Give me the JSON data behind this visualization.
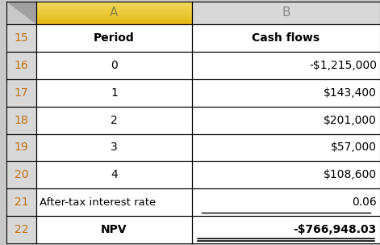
{
  "col_a_header_bg_top": "#f5d060",
  "col_a_header_bg_bot": "#e8b820",
  "col_b_header_bg": "#d8d8d8",
  "corner_bg": "#c8c8c8",
  "row_num_bg": "#d8d8d8",
  "row_num_text_color": "#c07010",
  "data_bg": "#ffffff",
  "border_color": "#000000",
  "npv_text_color": "#000000",
  "npv_underline_color": "#000000",
  "col_a_header_text": "A",
  "col_b_header_text": "B",
  "col_a_header_text_color": "#888844",
  "col_b_header_text_color": "#888888",
  "row_numbers": [
    "15",
    "16",
    "17",
    "18",
    "19",
    "20",
    "21",
    "22"
  ],
  "col_a": [
    "Period",
    "0",
    "1",
    "2",
    "3",
    "4",
    "After-tax interest rate",
    "NPV"
  ],
  "col_b": [
    "Cash flows",
    "-$1,215,000",
    "$143,400",
    "$201,000",
    "$57,000",
    "$108,600",
    "0.06",
    "-$766,948.03"
  ],
  "col_a_bold": [
    true,
    false,
    false,
    false,
    false,
    false,
    false,
    true
  ],
  "col_b_bold": [
    true,
    false,
    false,
    false,
    false,
    false,
    false,
    true
  ],
  "figsize": [
    4.71,
    3.03
  ],
  "dpi": 100
}
